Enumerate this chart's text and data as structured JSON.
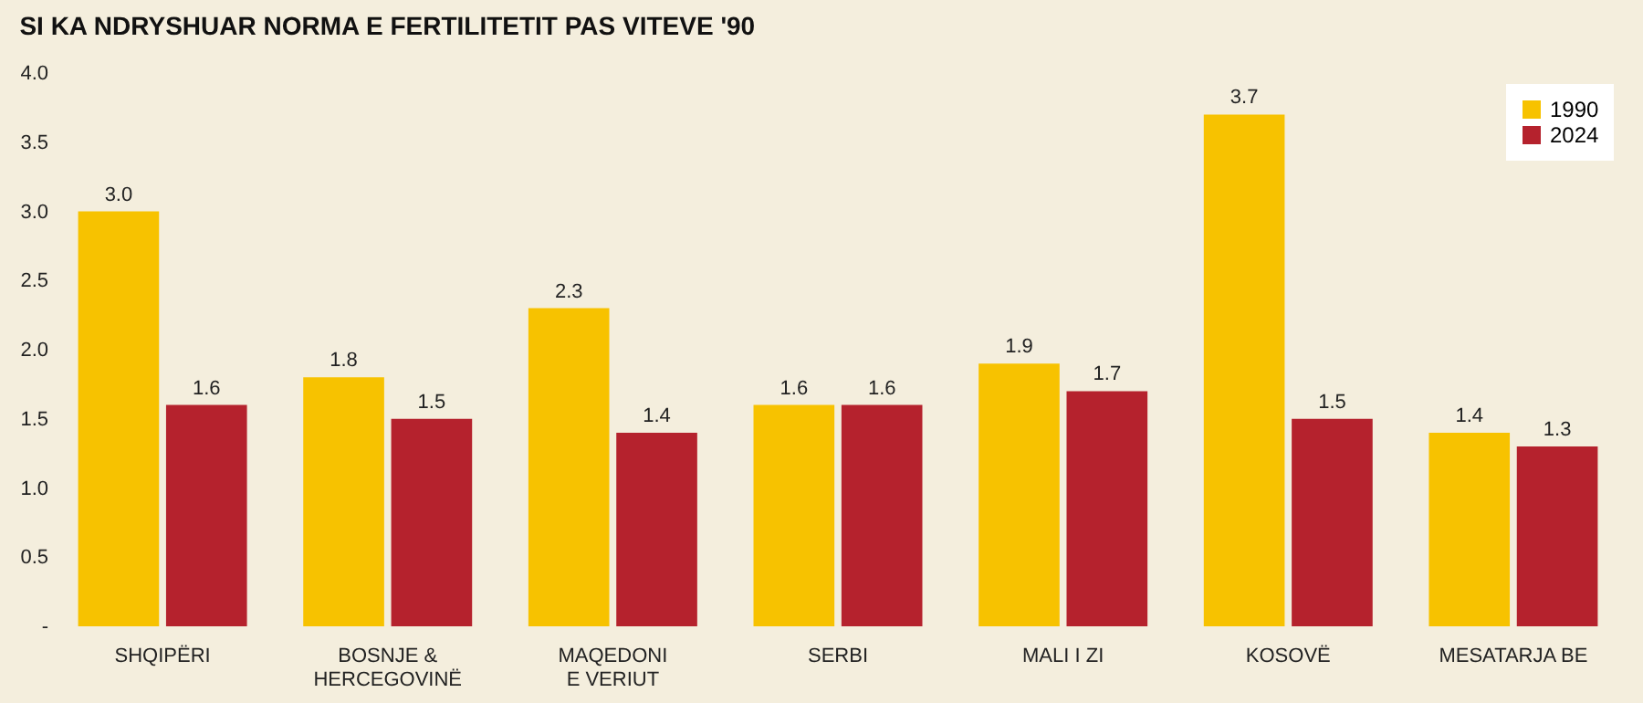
{
  "chart_data": {
    "type": "bar",
    "title": "SI KA NDRYSHUAR NORMA E FERTILITETIT PAS VITEVE '90",
    "categories": [
      "SHQIPËRI",
      "BOSNJE & HERCEGOVINË",
      "MAQEDONI E VERIUT",
      "SERBI",
      "MALI I ZI",
      "KOSOVË",
      "MESATARJA BE"
    ],
    "series": [
      {
        "name": "1990",
        "color": "#f7c200",
        "values": [
          3.0,
          1.8,
          2.3,
          1.6,
          1.9,
          3.7,
          1.4
        ],
        "value_labels": [
          "3.0",
          "1.8",
          "2.3",
          "1.6",
          "1.9",
          "3.7",
          "1.4"
        ]
      },
      {
        "name": "2024",
        "color": "#b5222d",
        "values": [
          1.6,
          1.5,
          1.4,
          1.6,
          1.7,
          1.5,
          1.3
        ],
        "value_labels": [
          "1.6",
          "1.5",
          "1.4",
          "1.6",
          "1.7",
          "1.5",
          "1.3"
        ]
      }
    ],
    "ylim": [
      0,
      4
    ],
    "yticks": [
      {
        "value": 0,
        "label": "-"
      },
      0.5,
      {
        "value": 1,
        "label": "1.0"
      },
      1.5,
      {
        "value": 2,
        "label": "2.0"
      },
      2.5,
      {
        "value": 3,
        "label": "3.0"
      },
      3.5,
      {
        "value": 4,
        "label": "4.0"
      }
    ],
    "legend": "top right"
  }
}
